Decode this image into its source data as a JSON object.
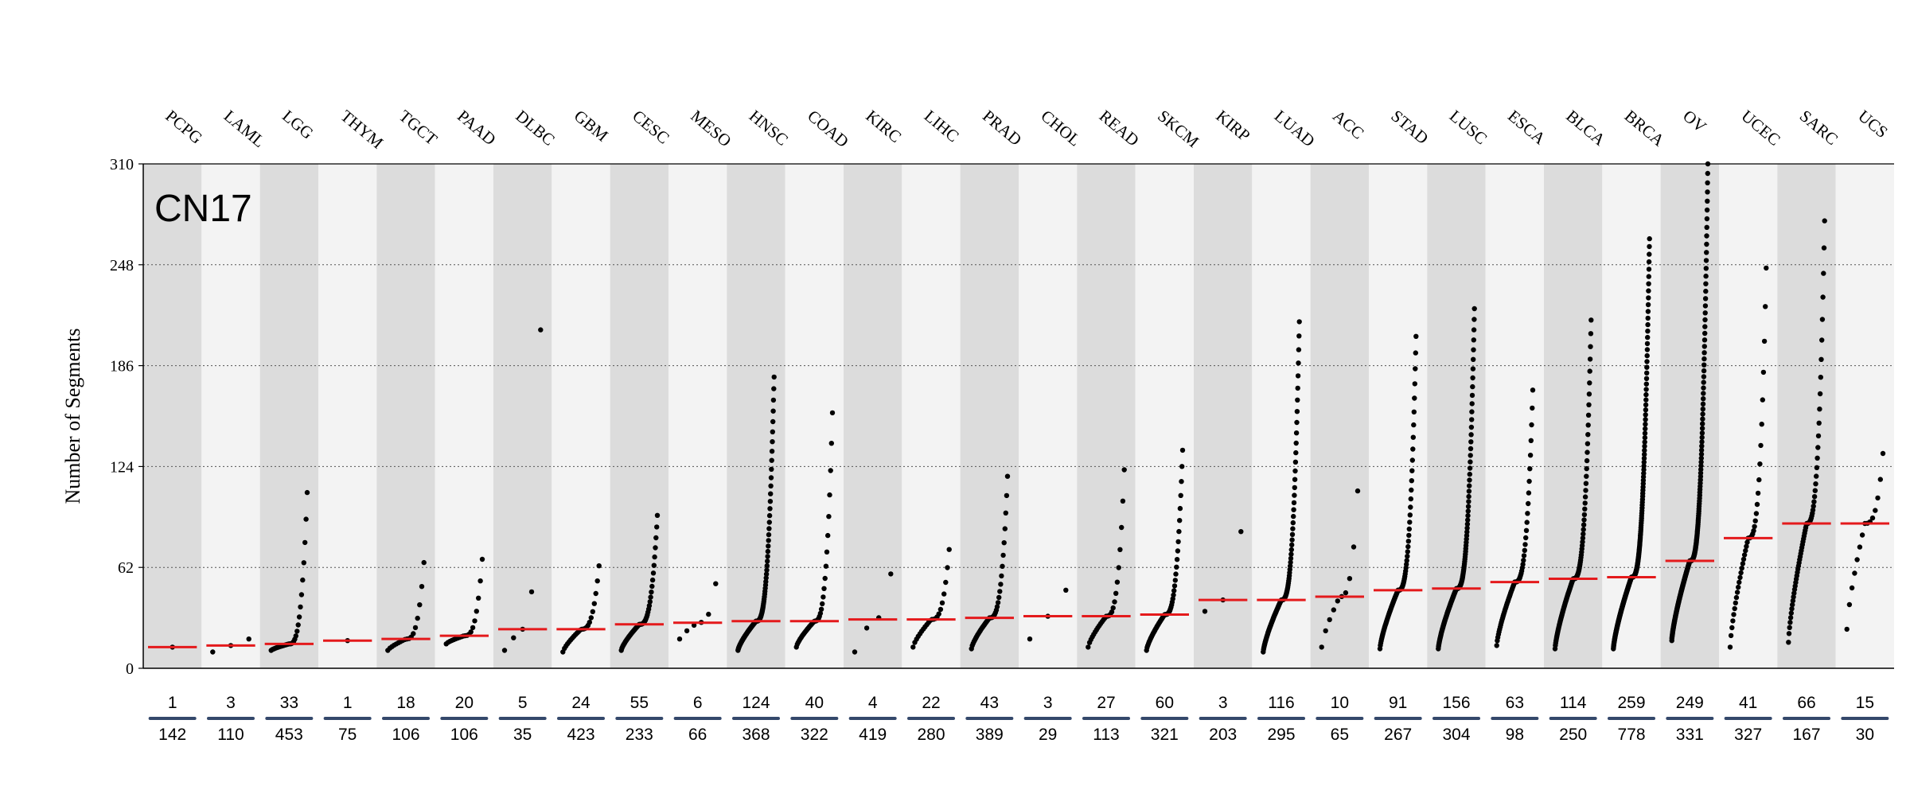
{
  "chart_data": {
    "type": "scatter",
    "panel_label": "CN17",
    "ylabel": "Number of Segments",
    "ylim": [
      0,
      310
    ],
    "yticks": [
      0,
      62,
      124,
      186,
      248,
      310
    ],
    "grid": true,
    "categories": [
      "PCPG",
      "LAML",
      "LGG",
      "THYM",
      "TGCT",
      "PAAD",
      "DLBC",
      "GBM",
      "CESC",
      "MESO",
      "HNSC",
      "COAD",
      "KIRC",
      "LIHC",
      "PRAD",
      "CHOL",
      "READ",
      "SKCM",
      "KIRP",
      "LUAD",
      "ACC",
      "STAD",
      "LUSC",
      "ESCA",
      "BLCA",
      "BRCA",
      "OV",
      "UCEC",
      "SARC",
      "UCS"
    ],
    "counts": [
      1,
      3,
      33,
      1,
      18,
      20,
      5,
      24,
      55,
      6,
      124,
      40,
      4,
      22,
      43,
      3,
      27,
      60,
      3,
      116,
      10,
      91,
      156,
      63,
      114,
      259,
      249,
      41,
      66,
      15
    ],
    "totals": [
      142,
      110,
      453,
      75,
      106,
      106,
      35,
      423,
      233,
      66,
      368,
      322,
      419,
      280,
      389,
      29,
      113,
      321,
      203,
      295,
      65,
      267,
      304,
      98,
      250,
      778,
      331,
      327,
      167,
      30
    ],
    "medians": [
      13,
      14,
      15,
      17,
      18,
      20,
      24,
      24,
      27,
      28,
      29,
      29,
      30,
      30,
      31,
      32,
      32,
      33,
      42,
      42,
      44,
      48,
      49,
      53,
      55,
      56,
      66,
      80,
      89,
      89
    ],
    "min_values": [
      13,
      10,
      11,
      17,
      11,
      15,
      11,
      10,
      11,
      18,
      11,
      13,
      10,
      13,
      12,
      18,
      13,
      11,
      35,
      10,
      13,
      12,
      12,
      14,
      12,
      12,
      17,
      13,
      16,
      24
    ],
    "max_values": [
      13,
      18,
      108,
      17,
      65,
      67,
      208,
      63,
      94,
      52,
      179,
      157,
      58,
      73,
      118,
      48,
      122,
      134,
      84,
      213,
      109,
      204,
      221,
      171,
      214,
      264,
      310,
      246,
      275,
      132
    ]
  }
}
